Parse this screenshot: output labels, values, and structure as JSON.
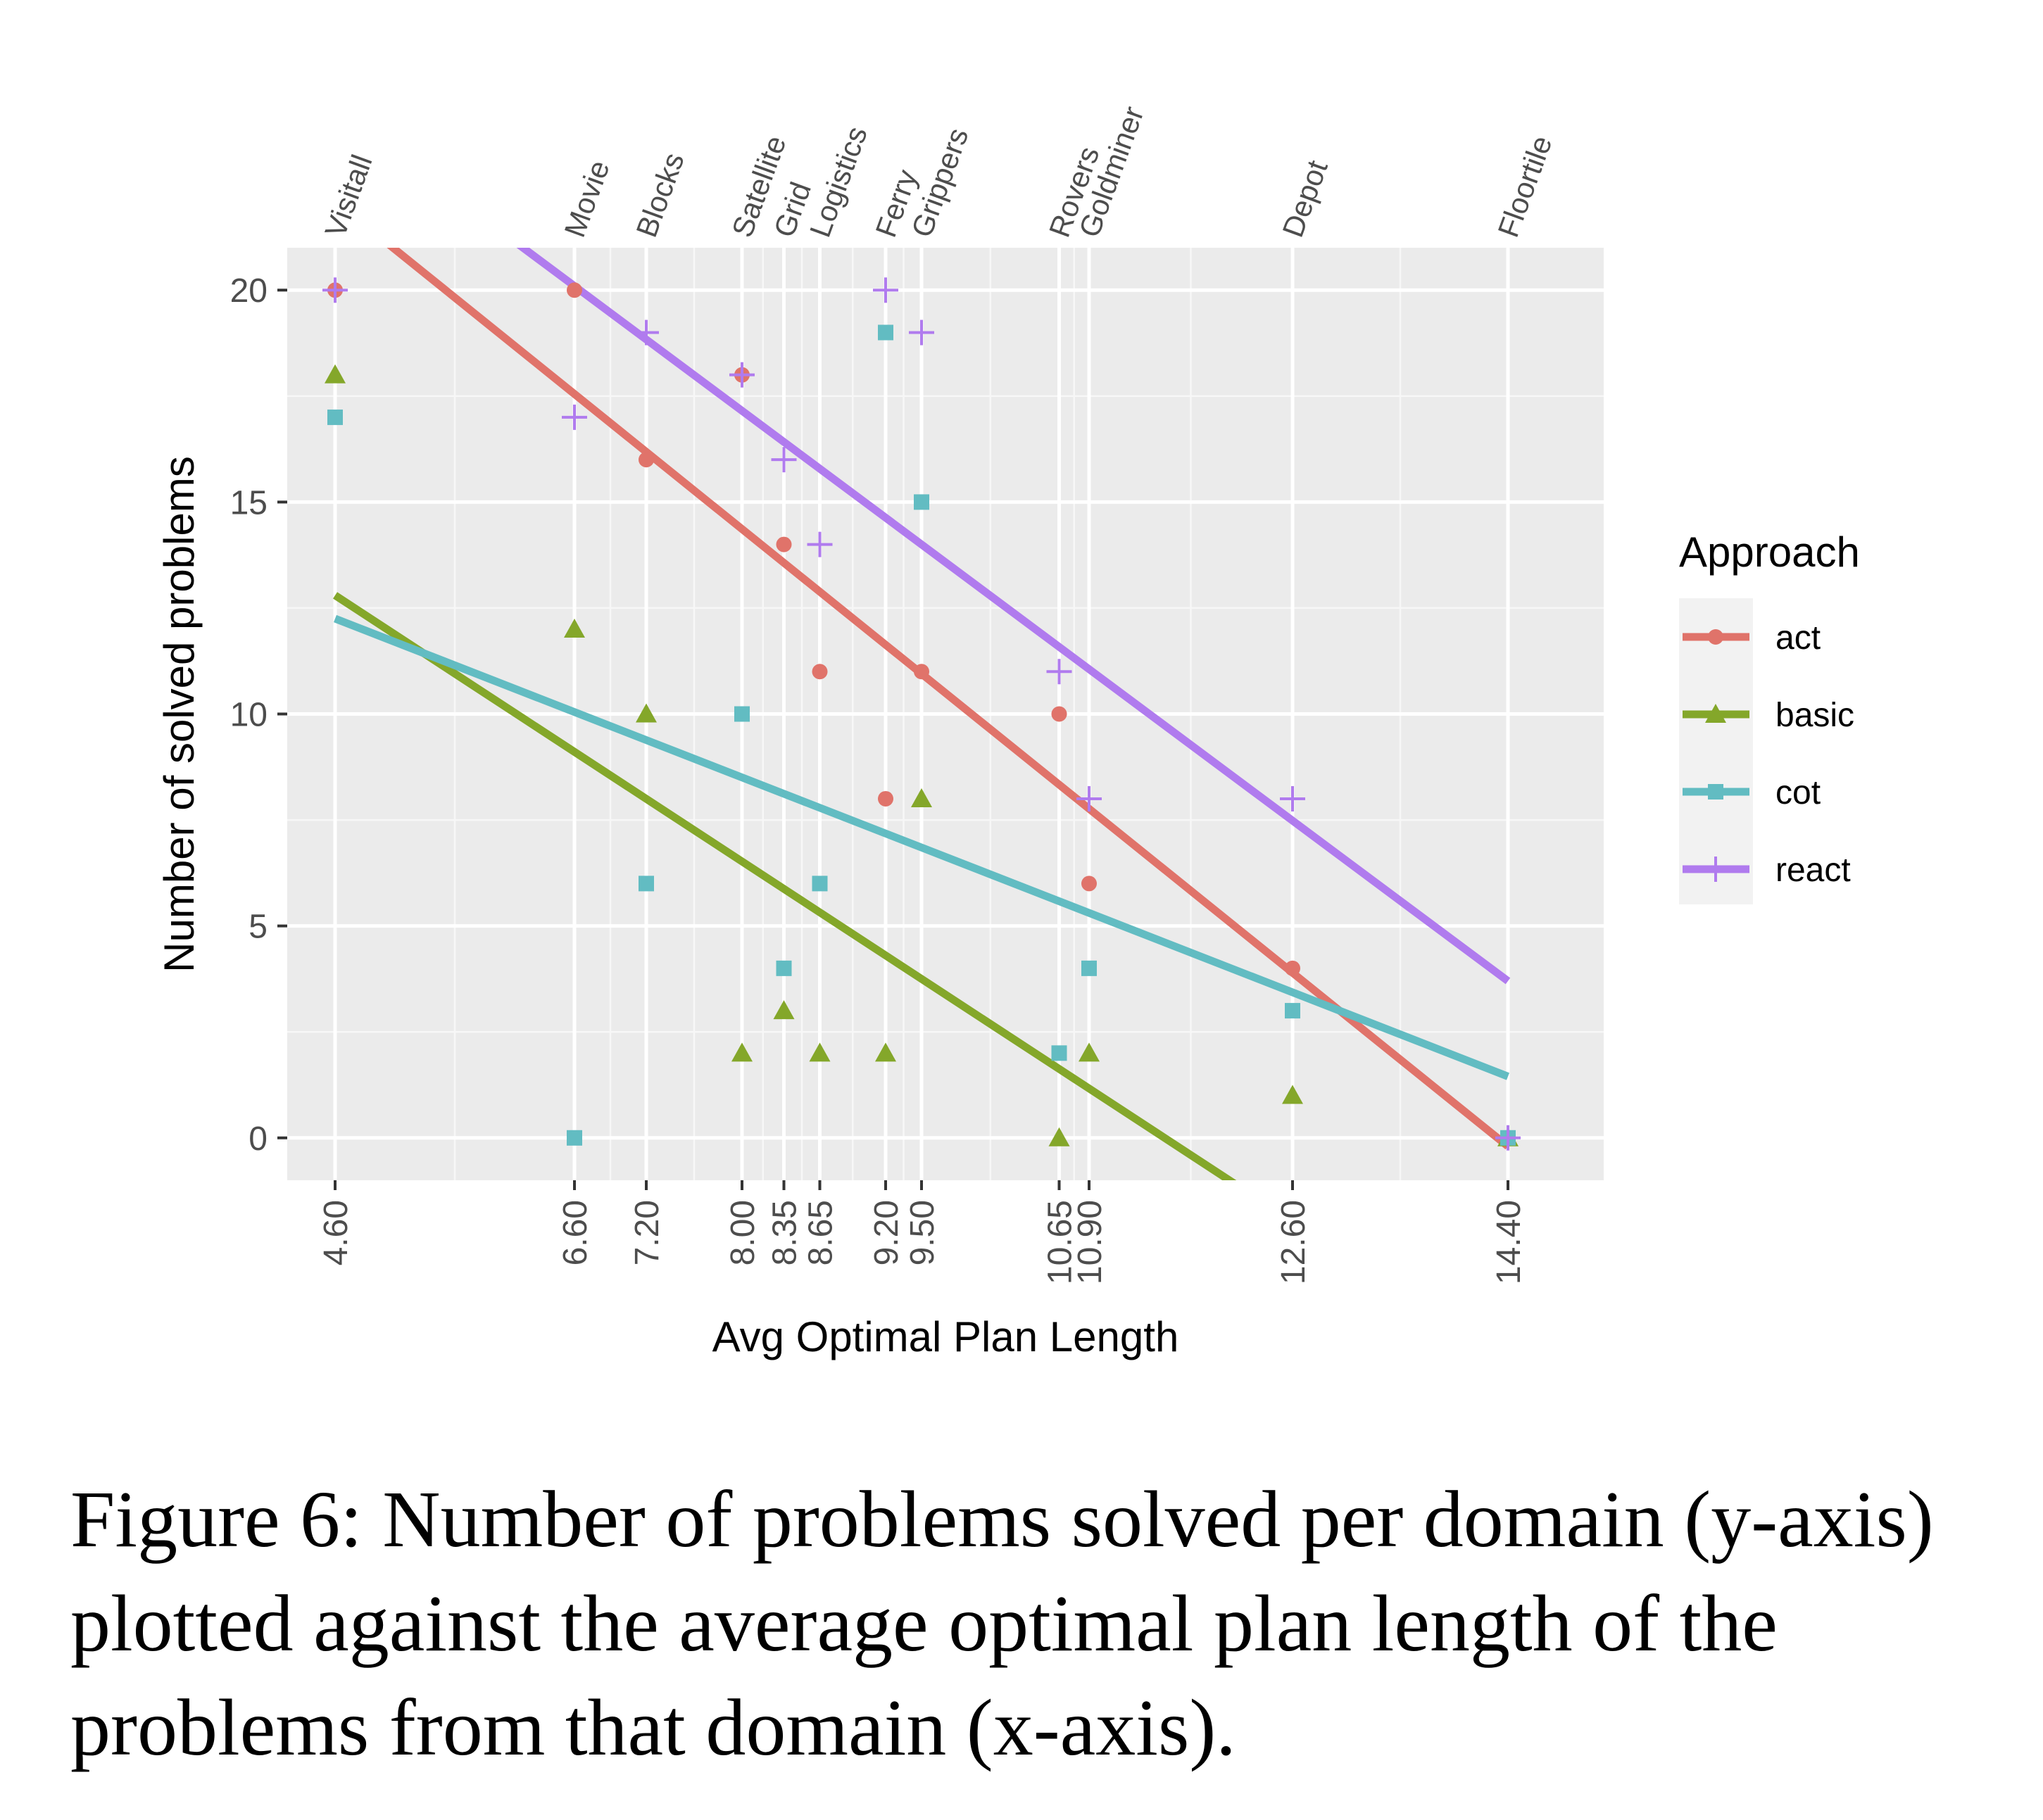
{
  "chart_data": {
    "type": "scatter",
    "title": "",
    "xlabel": "Avg Optimal Plan Length",
    "ylabel": "Number of solved problems",
    "xlim": [
      4.2,
      15.2
    ],
    "ylim": [
      -1,
      21
    ],
    "y_ticks": [
      0,
      5,
      10,
      15,
      20
    ],
    "x_ticks": [
      4.6,
      6.6,
      7.2,
      8.0,
      8.35,
      8.65,
      9.2,
      9.5,
      10.65,
      10.9,
      12.6,
      14.4
    ],
    "x_tick_labels": [
      "4.60",
      "6.60",
      "7.20",
      "8.00",
      "8.35",
      "8.65",
      "9.20",
      "9.50",
      "10.65",
      "10.90",
      "12.60",
      "14.40"
    ],
    "domains": [
      {
        "name": "Visitall",
        "x": 4.6
      },
      {
        "name": "Movie",
        "x": 6.6
      },
      {
        "name": "Blocks",
        "x": 7.2
      },
      {
        "name": "Satellite",
        "x": 8.0
      },
      {
        "name": "Grid",
        "x": 8.35
      },
      {
        "name": "Logistics",
        "x": 8.65
      },
      {
        "name": "Ferry",
        "x": 9.2
      },
      {
        "name": "Grippers",
        "x": 9.5
      },
      {
        "name": "Rovers",
        "x": 10.65
      },
      {
        "name": "Goldminer",
        "x": 10.9
      },
      {
        "name": "Depot",
        "x": 12.6
      },
      {
        "name": "Floortile",
        "x": 14.4
      }
    ],
    "grid": true,
    "legend": {
      "title": "Approach",
      "position": "right"
    },
    "series": [
      {
        "name": "act",
        "color": "#E0736A",
        "shape": "circle",
        "x": [
          4.6,
          6.6,
          7.2,
          8.0,
          8.35,
          8.65,
          9.2,
          9.5,
          10.65,
          10.9,
          12.6,
          14.4
        ],
        "y": [
          20,
          20,
          16,
          18,
          14,
          11,
          8,
          11,
          10,
          6,
          4,
          0
        ],
        "trend": {
          "x": [
            4.6,
            14.4
          ],
          "y": [
            22.1,
            -0.2
          ]
        }
      },
      {
        "name": "basic",
        "color": "#84A72A",
        "shape": "triangle",
        "x": [
          4.6,
          6.6,
          7.2,
          8.0,
          8.35,
          8.65,
          9.2,
          9.5,
          10.65,
          10.9,
          12.6,
          14.4
        ],
        "y": [
          18,
          12,
          10,
          2,
          3,
          2,
          2,
          8,
          0,
          2,
          1,
          0
        ],
        "trend": {
          "x": [
            4.6,
            14.4
          ],
          "y": [
            12.8,
            -5.3
          ]
        }
      },
      {
        "name": "cot",
        "color": "#62BCC2",
        "shape": "square",
        "x": [
          4.6,
          6.6,
          7.2,
          8.0,
          8.35,
          8.65,
          9.2,
          9.5,
          10.65,
          10.9,
          12.6,
          14.4
        ],
        "y": [
          17,
          0,
          6,
          10,
          4,
          6,
          19,
          15,
          2,
          4,
          3,
          0
        ],
        "trend": {
          "x": [
            4.6,
            14.4
          ],
          "y": [
            12.25,
            1.45
          ]
        }
      },
      {
        "name": "react",
        "color": "#B07BEE",
        "shape": "plus",
        "x": [
          4.6,
          6.6,
          7.2,
          8.0,
          8.35,
          8.65,
          9.2,
          9.5,
          10.65,
          10.9,
          12.6,
          14.4
        ],
        "y": [
          20,
          17,
          19,
          18,
          16,
          14,
          20,
          19,
          11,
          8,
          8,
          0
        ],
        "trend": {
          "x": [
            4.6,
            14.4
          ],
          "y": [
            24.3,
            3.7
          ]
        }
      }
    ]
  },
  "caption": "Figure 6: Number of problems solved per domain (y-axis) plotted against the average optimal plan length of the problems from that domain (x-axis)."
}
